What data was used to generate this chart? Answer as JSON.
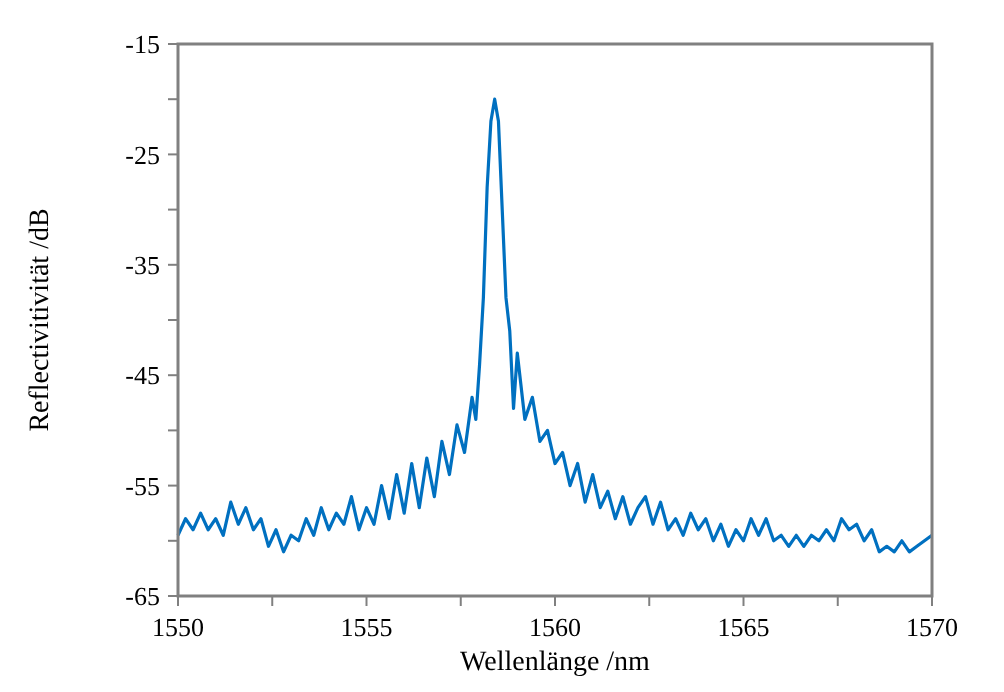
{
  "chart_data": {
    "type": "line",
    "xlabel": "Wellenlänge /nm",
    "ylabel": "Reflectivitivität /dB",
    "xlim": [
      1550,
      1570
    ],
    "ylim": [
      -65,
      -15
    ],
    "xticks": [
      1550,
      {
        "value": 1552.5,
        "label": null
      },
      1555,
      {
        "value": 1557.5,
        "label": null
      },
      1560,
      {
        "value": 1562.5,
        "label": null
      },
      1565,
      {
        "value": 1567.5,
        "label": null
      },
      1570
    ],
    "yticks": [
      -65,
      {
        "value": -60,
        "label": null
      },
      -55,
      {
        "value": -50,
        "label": null
      },
      -45,
      {
        "value": -40,
        "label": null
      },
      -35,
      {
        "value": -30,
        "label": null
      },
      -25,
      {
        "value": -20,
        "label": null
      },
      -15
    ],
    "marker": "none",
    "line_style": "solid",
    "series": [
      {
        "color": "#0070c0",
        "x": [
          1550,
          1550.2,
          1550.4,
          1550.6,
          1550.8,
          1551,
          1551.2,
          1551.4,
          1551.6,
          1551.8,
          1552,
          1552.2,
          1552.4,
          1552.6,
          1552.8,
          1553,
          1553.2,
          1553.4,
          1553.6,
          1553.8,
          1554,
          1554.2,
          1554.4,
          1554.6,
          1554.8,
          1555,
          1555.2,
          1555.4,
          1555.6,
          1555.8,
          1556,
          1556.2,
          1556.4,
          1556.6,
          1556.8,
          1557,
          1557.2,
          1557.4,
          1557.6,
          1557.8,
          1557.9,
          1558,
          1558.1,
          1558.2,
          1558.3,
          1558.4,
          1558.5,
          1558.6,
          1558.7,
          1558.8,
          1558.9,
          1559,
          1559.1,
          1559.2,
          1559.4,
          1559.6,
          1559.8,
          1560,
          1560.2,
          1560.4,
          1560.6,
          1560.8,
          1561,
          1561.2,
          1561.4,
          1561.6,
          1561.8,
          1562,
          1562.2,
          1562.4,
          1562.6,
          1562.8,
          1563,
          1563.2,
          1563.4,
          1563.6,
          1563.8,
          1564,
          1564.2,
          1564.4,
          1564.6,
          1564.8,
          1565,
          1565.2,
          1565.4,
          1565.6,
          1565.8,
          1566,
          1566.2,
          1566.4,
          1566.6,
          1566.8,
          1567,
          1567.2,
          1567.4,
          1567.6,
          1567.8,
          1568,
          1568.2,
          1568.4,
          1568.6,
          1568.8,
          1569,
          1569.2,
          1569.4,
          1569.6,
          1569.8,
          1570
        ],
        "values": [
          -59.5,
          -58,
          -59,
          -57.5,
          -59,
          -58,
          -59.5,
          -56.5,
          -58.5,
          -57,
          -59,
          -58,
          -60.5,
          -59,
          -61,
          -59.5,
          -60,
          -58,
          -59.5,
          -57,
          -59,
          -57.5,
          -58.5,
          -56,
          -59,
          -57,
          -58.5,
          -55,
          -58,
          -54,
          -57.5,
          -53,
          -57,
          -52.5,
          -56,
          -51,
          -54,
          -49.5,
          -52,
          -47,
          -49,
          -44,
          -38,
          -28,
          -22,
          -20,
          -22,
          -30,
          -38,
          -41,
          -48,
          -43,
          -46,
          -49,
          -47,
          -51,
          -50,
          -53,
          -52,
          -55,
          -53,
          -56.5,
          -54,
          -57,
          -55.5,
          -58,
          -56,
          -58.5,
          -57,
          -56,
          -58.5,
          -56.5,
          -59,
          -58,
          -59.5,
          -57.5,
          -59,
          -58,
          -60,
          -58.5,
          -60.5,
          -59,
          -60,
          -58,
          -59.5,
          -58,
          -60,
          -59.5,
          -60.5,
          -59.5,
          -60.5,
          -59.5,
          -60,
          -59,
          -60,
          -58,
          -59,
          -58.5,
          -60,
          -59,
          -61,
          -60.5,
          -61,
          -60,
          -61,
          -60.5,
          -60,
          -59.5
        ]
      }
    ]
  }
}
